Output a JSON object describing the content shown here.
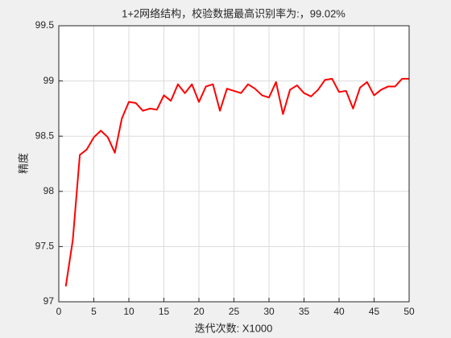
{
  "chart_data": {
    "type": "line",
    "title": "1+2网络结构，校验数据最高识别率为:，99.02%",
    "xlabel": "迭代次数: X1000",
    "ylabel": "精度",
    "x": [
      1,
      2,
      3,
      4,
      5,
      6,
      7,
      8,
      9,
      10,
      11,
      12,
      13,
      14,
      15,
      16,
      17,
      18,
      19,
      20,
      21,
      22,
      23,
      24,
      25,
      26,
      27,
      28,
      29,
      30,
      31,
      32,
      33,
      34,
      35,
      36,
      37,
      38,
      39,
      40,
      41,
      42,
      43,
      44,
      45,
      46,
      47,
      48,
      49,
      50
    ],
    "values": [
      97.14,
      97.56,
      98.33,
      98.38,
      98.49,
      98.55,
      98.49,
      98.35,
      98.66,
      98.81,
      98.8,
      98.73,
      98.75,
      98.74,
      98.87,
      98.82,
      98.97,
      98.89,
      98.97,
      98.81,
      98.95,
      98.97,
      98.73,
      98.93,
      98.91,
      98.89,
      98.97,
      98.93,
      98.87,
      98.85,
      98.99,
      98.7,
      98.92,
      98.96,
      98.89,
      98.86,
      98.92,
      99.01,
      99.02,
      98.9,
      98.91,
      98.75,
      98.94,
      98.99,
      98.87,
      98.92,
      98.95,
      98.95,
      99.02,
      99.02
    ],
    "color": "#ff0000",
    "xlim": [
      0,
      50
    ],
    "xticks": [
      0,
      5,
      10,
      15,
      20,
      25,
      30,
      35,
      40,
      45,
      50
    ],
    "ylim": [
      97,
      99.5
    ],
    "yticks": [
      97,
      97.5,
      98,
      98.5,
      99,
      99.5
    ],
    "grid": true
  }
}
